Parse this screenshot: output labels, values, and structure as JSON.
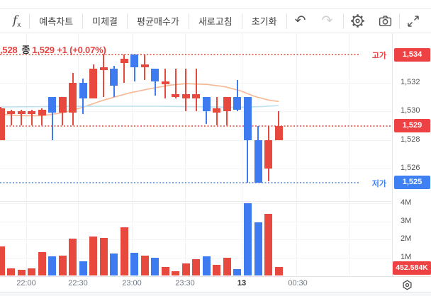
{
  "toolbar": {
    "fx_label": "f",
    "fx_sub": "x",
    "buttons": [
      {
        "label": "예측차트"
      },
      {
        "label": "미체결"
      },
      {
        "label": "평균매수가"
      },
      {
        "label": "새로고침"
      },
      {
        "label": "초기화"
      }
    ],
    "undo_glyph": "↶",
    "redo_glyph": "↷"
  },
  "legend": {
    "clipped_prefix": ",528",
    "close_label": "종",
    "close_value": "1,529",
    "change": "+1 (+0.07%)"
  },
  "price_axis": {
    "tick_labels": [
      {
        "text": "1,532",
        "price": 1532
      },
      {
        "text": "1,530",
        "price": 1530
      },
      {
        "text": "1,528",
        "price": 1528
      },
      {
        "text": "1,526",
        "price": 1526
      }
    ],
    "badges": [
      {
        "name": "high",
        "text": "1,534",
        "price": 1534,
        "color": "#ee4143"
      },
      {
        "name": "current",
        "text": "1,529",
        "price": 1529,
        "color": "#ee4143"
      },
      {
        "name": "low",
        "text": "1,525",
        "price": 1525,
        "color": "#3f80f2"
      }
    ]
  },
  "volume_axis": {
    "tick_labels": [
      {
        "text": "4M",
        "value": 4000000
      },
      {
        "text": "3M",
        "value": 3000000
      },
      {
        "text": "2M",
        "value": 2000000
      },
      {
        "text": "1M",
        "value": 1000000
      }
    ],
    "current_badge": {
      "text": "452.584K",
      "color": "#ee4143"
    }
  },
  "annotations": {
    "high_label": {
      "text": "고가",
      "price": 1534,
      "color": "#ee4143"
    },
    "low_label": {
      "text": "저가",
      "price": 1525,
      "color": "#3f80f2"
    }
  },
  "time_axis": {
    "labels": [
      {
        "text": "22:00",
        "bold": false
      },
      {
        "text": "22:30",
        "bold": false
      },
      {
        "text": "23:00",
        "bold": false
      },
      {
        "text": "23:30",
        "bold": false
      },
      {
        "text": "13",
        "bold": true
      },
      {
        "text": "00:30",
        "bold": false
      }
    ]
  },
  "chart_data": {
    "type": "candlestick_with_volume",
    "up_color": "#e8493f",
    "down_color": "#3e7bf0",
    "price_axis_range": [
      1523.6,
      1535.5
    ],
    "volume_axis_range": [
      0,
      4300000
    ],
    "reference_lines": [
      {
        "name": "high",
        "price": 1534,
        "style": "dotted",
        "color": "#e4766b"
      },
      {
        "name": "current",
        "price": 1529,
        "style": "dotted",
        "color": "#e4766b"
      },
      {
        "name": "low",
        "price": 1525,
        "style": "dotted",
        "color": "#7fa6d9"
      }
    ],
    "candles": [
      {
        "o": 1528.0,
        "h": 1530.3,
        "l": 1528.0,
        "c": 1530.2,
        "v": 1600000,
        "dir": "up"
      },
      {
        "o": 1529.8,
        "h": 1530.1,
        "l": 1529.0,
        "c": 1530.0,
        "v": 400000,
        "dir": "up"
      },
      {
        "o": 1529.8,
        "h": 1530.1,
        "l": 1529.0,
        "c": 1530.0,
        "v": 330000,
        "dir": "up"
      },
      {
        "o": 1529.8,
        "h": 1530.1,
        "l": 1529.0,
        "c": 1530.0,
        "v": 400000,
        "dir": "up"
      },
      {
        "o": 1529.7,
        "h": 1530.2,
        "l": 1529.0,
        "c": 1530.1,
        "v": 1300000,
        "dir": "up"
      },
      {
        "o": 1531.0,
        "h": 1531.0,
        "l": 1528.0,
        "c": 1529.9,
        "v": 1060000,
        "dir": "down"
      },
      {
        "o": 1529.9,
        "h": 1531.0,
        "l": 1529.0,
        "c": 1531.0,
        "v": 1100000,
        "dir": "up"
      },
      {
        "o": 1529.9,
        "h": 1532.7,
        "l": 1529.0,
        "c": 1532.0,
        "v": 2040000,
        "dir": "up"
      },
      {
        "o": 1532.0,
        "h": 1532.3,
        "l": 1529.8,
        "c": 1530.9,
        "v": 780000,
        "dir": "down"
      },
      {
        "o": 1530.9,
        "h": 1533.3,
        "l": 1530.9,
        "c": 1533.0,
        "v": 2160000,
        "dir": "up"
      },
      {
        "o": 1532.9,
        "h": 1534.0,
        "l": 1531.0,
        "c": 1533.1,
        "v": 2080000,
        "dir": "up"
      },
      {
        "o": 1533.0,
        "h": 1533.2,
        "l": 1531.0,
        "c": 1531.8,
        "v": 1220000,
        "dir": "down"
      },
      {
        "o": 1533.4,
        "h": 1534.0,
        "l": 1532.0,
        "c": 1533.7,
        "v": 2650000,
        "dir": "up"
      },
      {
        "o": 1534.0,
        "h": 1534.0,
        "l": 1532.1,
        "c": 1533.1,
        "v": 1270000,
        "dir": "down"
      },
      {
        "o": 1533.1,
        "h": 1534.0,
        "l": 1532.2,
        "c": 1533.3,
        "v": 1100000,
        "dir": "up"
      },
      {
        "o": 1533.0,
        "h": 1533.0,
        "l": 1531.1,
        "c": 1532.1,
        "v": 980000,
        "dir": "down"
      },
      {
        "o": 1531.9,
        "h": 1533.0,
        "l": 1530.9,
        "c": 1532.1,
        "v": 490000,
        "dir": "up"
      },
      {
        "o": 1531.0,
        "h": 1533.0,
        "l": 1530.9,
        "c": 1531.2,
        "v": 240000,
        "dir": "up"
      },
      {
        "o": 1530.9,
        "h": 1533.0,
        "l": 1530.0,
        "c": 1531.2,
        "v": 650000,
        "dir": "up"
      },
      {
        "o": 1530.9,
        "h": 1533.0,
        "l": 1530.0,
        "c": 1531.2,
        "v": 900000,
        "dir": "up"
      },
      {
        "o": 1531.0,
        "h": 1531.0,
        "l": 1529.1,
        "c": 1530.0,
        "v": 1060000,
        "dir": "down"
      },
      {
        "o": 1529.9,
        "h": 1531.0,
        "l": 1529.0,
        "c": 1530.2,
        "v": 600000,
        "dir": "up"
      },
      {
        "o": 1530.0,
        "h": 1531.0,
        "l": 1529.0,
        "c": 1531.0,
        "v": 1000000,
        "dir": "up"
      },
      {
        "o": 1531.0,
        "h": 1532.2,
        "l": 1530.0,
        "c": 1530.1,
        "v": 370000,
        "dir": "down"
      },
      {
        "o": 1531.0,
        "h": 1531.0,
        "l": 1525.0,
        "c": 1528.0,
        "v": 4000000,
        "dir": "down"
      },
      {
        "o": 1528.0,
        "h": 1529.0,
        "l": 1525.0,
        "c": 1525.0,
        "v": 2940000,
        "dir": "down"
      },
      {
        "o": 1526.0,
        "h": 1529.0,
        "l": 1525.1,
        "c": 1528.0,
        "v": 3430000,
        "dir": "up"
      },
      {
        "o": 1528.0,
        "h": 1530.0,
        "l": 1528.0,
        "c": 1529.0,
        "v": 452584,
        "dir": "up"
      }
    ],
    "moving_averages": [
      {
        "name": "ma-slow-orange",
        "color": "#f7b794",
        "points": [
          [
            0,
            1529.8
          ],
          [
            2,
            1529.7
          ],
          [
            4,
            1529.7
          ],
          [
            6,
            1529.9
          ],
          [
            8,
            1530.3
          ],
          [
            10,
            1530.8
          ],
          [
            12.5,
            1531.3
          ],
          [
            14.5,
            1531.6
          ],
          [
            16.5,
            1531.85
          ],
          [
            18,
            1531.95
          ],
          [
            20,
            1531.9
          ],
          [
            21.7,
            1531.75
          ],
          [
            23.3,
            1531.45
          ],
          [
            24.7,
            1531.05
          ],
          [
            26,
            1530.8
          ],
          [
            27,
            1530.7
          ]
        ]
      },
      {
        "name": "ma-fast-lightblue",
        "color": "#bde1ef",
        "points": [
          [
            0,
            1530.32
          ],
          [
            5,
            1530.35
          ],
          [
            10,
            1530.37
          ],
          [
            15,
            1530.37
          ],
          [
            20,
            1530.33
          ],
          [
            23,
            1530.3
          ],
          [
            25.5,
            1530.35
          ],
          [
            27,
            1530.42
          ]
        ]
      }
    ]
  }
}
